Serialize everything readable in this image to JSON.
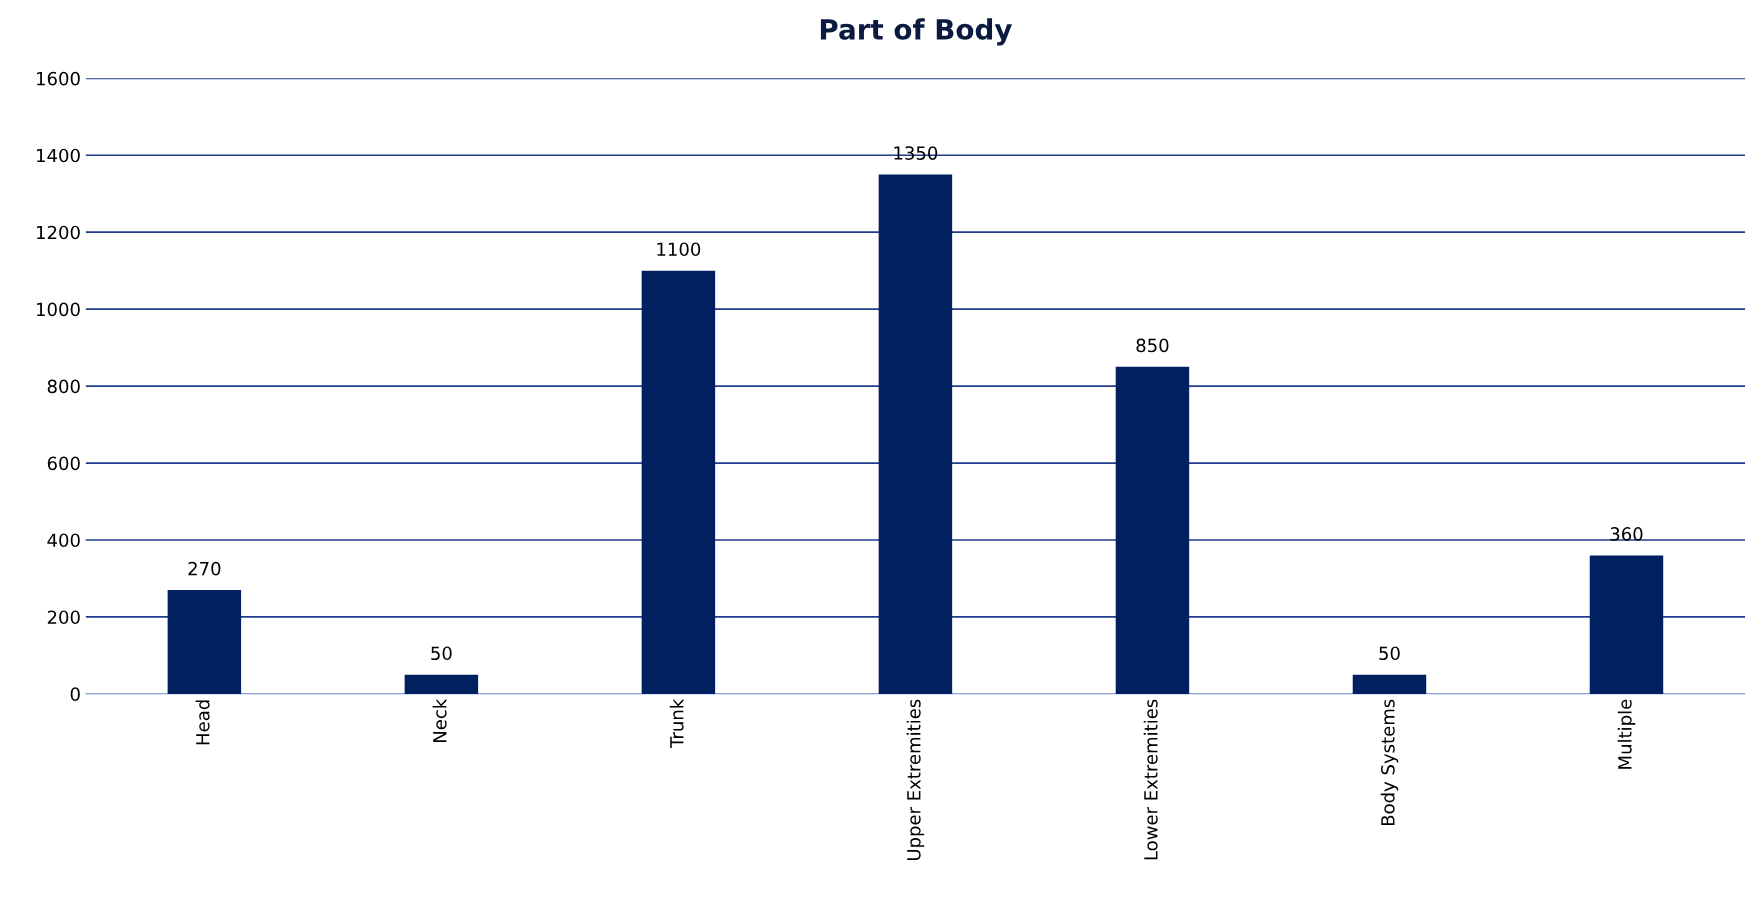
{
  "chart_data": {
    "type": "bar",
    "title": "Part of Body",
    "categories": [
      "Head",
      "Neck",
      "Trunk",
      "Upper Extremities",
      "Lower Extremities",
      "Body Systems",
      "Multiple"
    ],
    "values": [
      270,
      50,
      1100,
      1350,
      850,
      50,
      360
    ],
    "color": "#002060",
    "ylim": [
      0,
      1600
    ],
    "yticks": [
      0,
      200,
      400,
      600,
      800,
      1000,
      1200,
      1400,
      1600
    ],
    "grid": "y",
    "data_labels": true
  }
}
